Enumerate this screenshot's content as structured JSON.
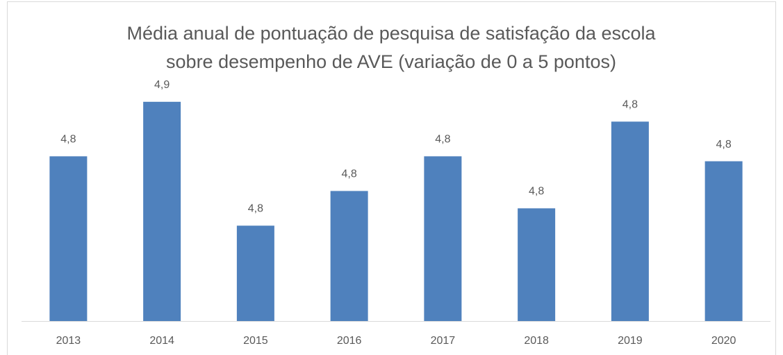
{
  "chart_data": {
    "type": "bar",
    "title": [
      "Média anual de pontuação de pesquisa de satisfação da escola",
      "sobre desempenho de AVE (variação de 0 a 5 pontos)"
    ],
    "categories": [
      "2013",
      "2014",
      "2015",
      "2016",
      "2017",
      "2018",
      "2019",
      "2020"
    ],
    "values": [
      4.813,
      4.857,
      4.757,
      4.785,
      4.813,
      4.771,
      4.841,
      4.809
    ],
    "value_labels": [
      "4,8",
      "4,9",
      "4,8",
      "4,8",
      "4,8",
      "4,8",
      "4,8",
      "4,8"
    ],
    "color": "#4f81bd",
    "ylim": [
      4.68,
      4.9
    ]
  }
}
